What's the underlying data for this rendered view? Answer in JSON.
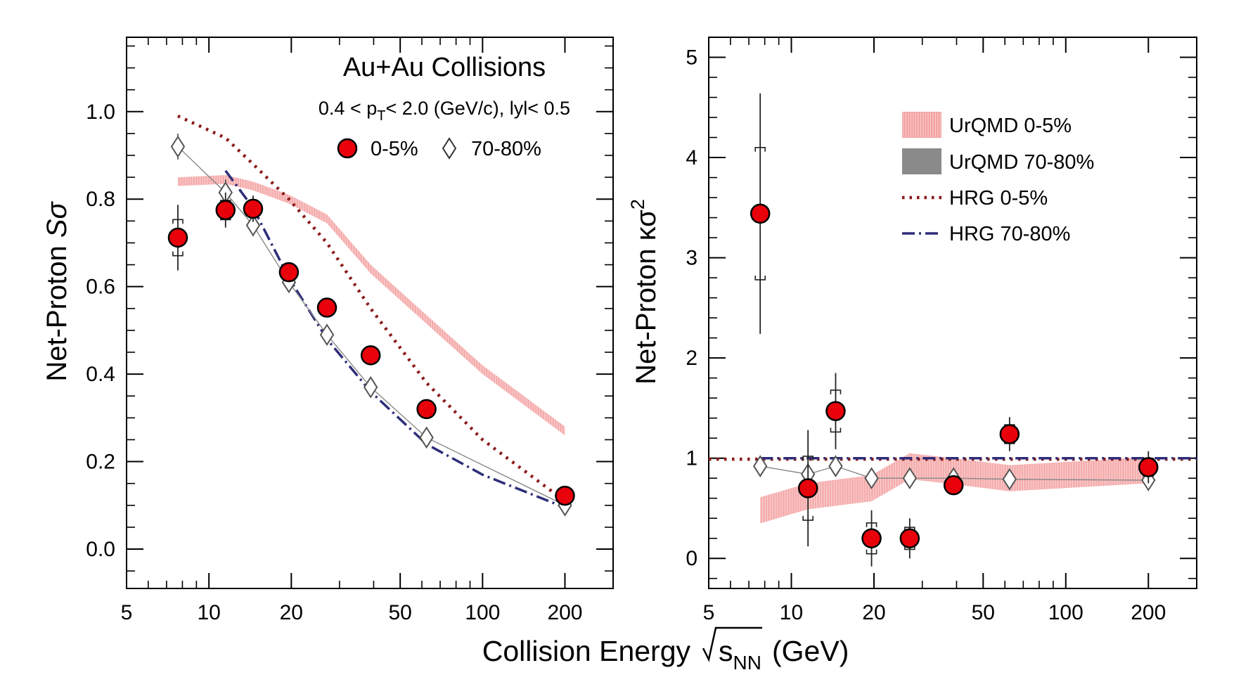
{
  "figure": {
    "shared_xlabel": "Collision Energy",
    "shared_xlabel_sqrt": "s",
    "shared_xlabel_sub": "NN",
    "shared_xlabel_unit": "(GeV)"
  },
  "colors": {
    "central_marker": "#e8000b",
    "urqmd_central": "#f4a3a3",
    "urqmd_peripheral": "#8a8a8a",
    "hrg_central": "#8b1a1a",
    "hrg_peripheral": "#2e2e7a",
    "peripheral_marker": "#555555"
  },
  "chart_data": [
    {
      "type": "scatter",
      "panel": "left",
      "title": "Au+Au Collisions",
      "subtitle_parts": [
        "0.4 < p",
        "T",
        "< 2.0 (GeV/c), lyl< 0.5"
      ],
      "ylabel_main": "Net-Proton ",
      "ylabel_sym": "Sσ",
      "xscale": "log",
      "xlim": [
        5,
        300
      ],
      "ylim": [
        -0.09,
        1.17
      ],
      "xticks": [
        5,
        10,
        20,
        50,
        100,
        200
      ],
      "xtick_labels": [
        "5",
        "10",
        "20",
        "50",
        "100",
        "200"
      ],
      "yticks": [
        0.0,
        0.2,
        0.4,
        0.6,
        0.8,
        1.0
      ],
      "ytick_labels": [
        "0.0",
        "0.2",
        "0.4",
        "0.6",
        "0.8",
        "1.0"
      ],
      "legend": {
        "placement": "top-right",
        "entries": [
          "0-5%",
          "70-80%"
        ]
      },
      "series": [
        {
          "name": "0-5%",
          "kind": "marker-circle",
          "x": [
            7.7,
            11.5,
            14.5,
            19.6,
            27,
            39,
            62.4,
            200
          ],
          "y": [
            0.712,
            0.775,
            0.778,
            0.633,
            0.552,
            0.443,
            0.32,
            0.122
          ],
          "err": [
            0.075,
            0.04,
            0.03,
            0.02,
            0.015,
            0.012,
            0.012,
            0.012
          ]
        },
        {
          "name": "70-80%",
          "kind": "marker-diamond",
          "x": [
            7.7,
            11.5,
            14.5,
            19.6,
            27,
            39,
            62.4,
            200
          ],
          "y": [
            0.92,
            0.815,
            0.74,
            0.61,
            0.49,
            0.37,
            0.255,
            0.1
          ],
          "err": [
            0.02,
            0.02,
            0.015,
            0.01,
            0.01,
            0.01,
            0.01,
            0.01
          ]
        },
        {
          "name": "UrQMD 0-5%",
          "kind": "band",
          "x": [
            7.7,
            11.5,
            14.5,
            19.6,
            27,
            39,
            62.4,
            100,
            200
          ],
          "y": [
            0.84,
            0.845,
            0.83,
            0.8,
            0.755,
            0.64,
            0.525,
            0.41,
            0.27
          ],
          "half_width": 0.01
        },
        {
          "name": "HRG 0-5%",
          "kind": "dotted",
          "x": [
            7.7,
            11.5,
            14.5,
            19.6,
            27,
            39,
            62.4,
            100,
            200
          ],
          "y": [
            0.99,
            0.94,
            0.88,
            0.8,
            0.7,
            0.55,
            0.38,
            0.25,
            0.11
          ]
        },
        {
          "name": "HRG 70-80%",
          "kind": "dashdot",
          "x": [
            11.5,
            14.5,
            19.6,
            27,
            39,
            62.4,
            100,
            200
          ],
          "y": [
            0.865,
            0.78,
            0.62,
            0.48,
            0.36,
            0.24,
            0.17,
            0.095
          ]
        }
      ]
    },
    {
      "type": "scatter",
      "panel": "right",
      "ylabel_main": "Net-Proton ",
      "ylabel_sym": "κσ",
      "ylabel_sup": "2",
      "xscale": "log",
      "xlim": [
        5,
        300
      ],
      "ylim": [
        -0.3,
        5.2
      ],
      "xticks": [
        5,
        10,
        20,
        50,
        100,
        200
      ],
      "xtick_labels": [
        "5",
        "10",
        "20",
        "50",
        "100",
        "200"
      ],
      "yticks": [
        0,
        1,
        2,
        3,
        4,
        5
      ],
      "ytick_labels": [
        "0",
        "1",
        "2",
        "3",
        "4",
        "5"
      ],
      "legend": {
        "placement": "top-right",
        "entries": [
          "UrQMD 0-5%",
          "UrQMD 70-80%",
          "HRG 0-5%",
          "HRG 70-80%"
        ]
      },
      "series": [
        {
          "name": "0-5%",
          "kind": "marker-circle",
          "x": [
            7.7,
            11.5,
            14.5,
            19.6,
            27,
            39,
            62.4,
            200
          ],
          "y": [
            3.44,
            0.7,
            1.47,
            0.2,
            0.2,
            0.73,
            1.24,
            0.91
          ],
          "err": [
            1.2,
            0.58,
            0.38,
            0.28,
            0.2,
            0.08,
            0.17,
            0.16
          ]
        },
        {
          "name": "70-80%",
          "kind": "marker-diamond",
          "x": [
            7.7,
            11.5,
            14.5,
            19.6,
            27,
            39,
            62.4,
            200
          ],
          "y": [
            0.92,
            0.84,
            0.92,
            0.8,
            0.8,
            0.8,
            0.79,
            0.78
          ],
          "err": [
            0.02,
            0.02,
            0.02,
            0.02,
            0.02,
            0.02,
            0.02,
            0.02
          ]
        },
        {
          "name": "UrQMD 0-5%",
          "kind": "band",
          "x": [
            7.7,
            11.5,
            19.6,
            27,
            39,
            62.4,
            200
          ],
          "y": [
            0.48,
            0.62,
            0.7,
            0.92,
            0.87,
            0.8,
            0.88
          ],
          "half_width": 0.13
        },
        {
          "name": "HRG 0-5%",
          "kind": "dotted",
          "x": [
            5,
            300
          ],
          "y": [
            0.99,
            0.99
          ]
        },
        {
          "name": "HRG 70-80%",
          "kind": "dashdot",
          "x": [
            7.7,
            300
          ],
          "y": [
            1.0,
            1.0
          ]
        }
      ]
    }
  ]
}
